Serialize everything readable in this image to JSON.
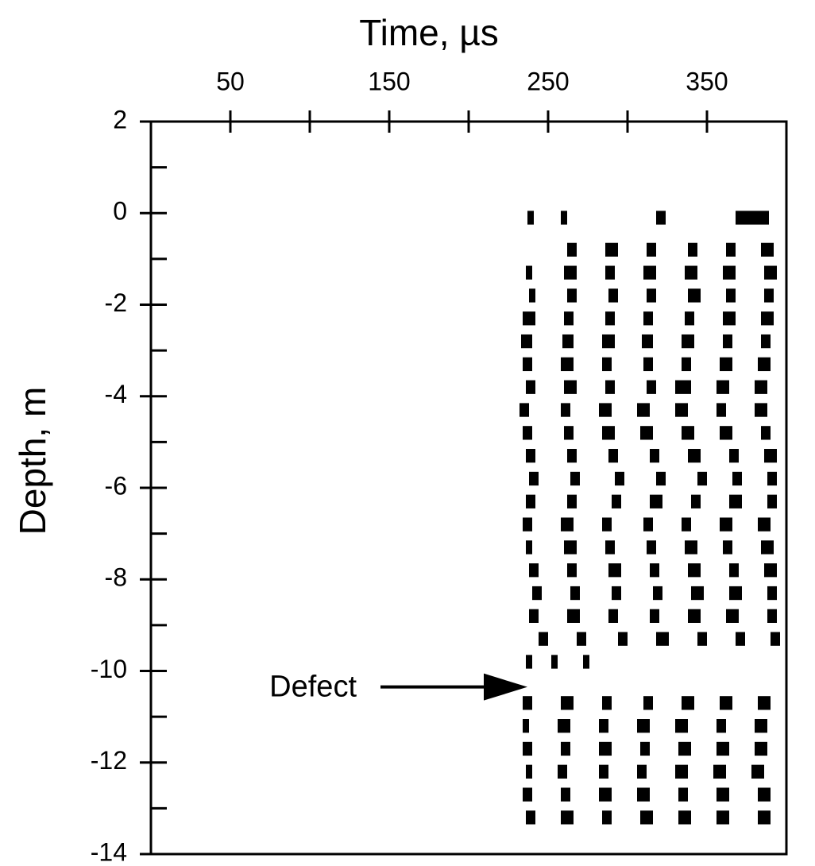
{
  "chart_data": {
    "type": "trace_bands",
    "xlabel": "Time, µs",
    "ylabel": "Depth, m",
    "xlim": [
      0,
      400
    ],
    "xticks": [
      50,
      150,
      250,
      350
    ],
    "x_minor_ticks": [
      100,
      200,
      300
    ],
    "ylim": [
      -14,
      2
    ],
    "yticks": [
      2,
      0,
      -2,
      -4,
      -6,
      -8,
      -10,
      -12,
      -14
    ],
    "y_minor_ticks": [
      1,
      -1,
      -3,
      -5,
      -7,
      -9,
      -11,
      -13
    ],
    "color": "#000000",
    "annotation": {
      "text": "Defect",
      "x": 237,
      "y": -10.35
    },
    "traces": [
      {
        "depth": -0.1,
        "bands": [
          [
            237,
            241
          ],
          [
            258,
            262
          ],
          [
            318,
            324
          ],
          [
            368,
            389
          ]
        ]
      },
      {
        "depth": -0.8,
        "bands": [
          [
            262,
            268
          ],
          [
            286,
            294
          ],
          [
            312,
            318
          ],
          [
            338,
            344
          ],
          [
            362,
            368
          ],
          [
            384,
            392
          ]
        ]
      },
      {
        "depth": -1.3,
        "bands": [
          [
            236,
            240
          ],
          [
            260,
            268
          ],
          [
            286,
            292
          ],
          [
            310,
            318
          ],
          [
            336,
            344
          ],
          [
            360,
            368
          ],
          [
            386,
            394
          ]
        ]
      },
      {
        "depth": -1.8,
        "bands": [
          [
            238,
            242
          ],
          [
            262,
            268
          ],
          [
            288,
            294
          ],
          [
            312,
            318
          ],
          [
            338,
            346
          ],
          [
            362,
            368
          ],
          [
            386,
            392
          ]
        ]
      },
      {
        "depth": -2.3,
        "bands": [
          [
            234,
            242
          ],
          [
            260,
            266
          ],
          [
            286,
            292
          ],
          [
            310,
            316
          ],
          [
            336,
            342
          ],
          [
            360,
            368
          ],
          [
            384,
            392
          ]
        ]
      },
      {
        "depth": -2.8,
        "bands": [
          [
            233,
            240
          ],
          [
            259,
            266
          ],
          [
            284,
            292
          ],
          [
            309,
            316
          ],
          [
            334,
            342
          ],
          [
            360,
            366
          ],
          [
            384,
            390
          ]
        ]
      },
      {
        "depth": -3.3,
        "bands": [
          [
            234,
            240
          ],
          [
            258,
            266
          ],
          [
            284,
            290
          ],
          [
            310,
            316
          ],
          [
            334,
            340
          ],
          [
            358,
            366
          ],
          [
            382,
            390
          ]
        ]
      },
      {
        "depth": -3.8,
        "bands": [
          [
            236,
            242
          ],
          [
            260,
            268
          ],
          [
            286,
            292
          ],
          [
            312,
            318
          ],
          [
            330,
            340
          ],
          [
            356,
            364
          ],
          [
            380,
            388
          ]
        ]
      },
      {
        "depth": -4.3,
        "bands": [
          [
            232,
            238
          ],
          [
            258,
            264
          ],
          [
            282,
            290
          ],
          [
            306,
            314
          ],
          [
            330,
            338
          ],
          [
            356,
            362
          ],
          [
            380,
            388
          ]
        ]
      },
      {
        "depth": -4.8,
        "bands": [
          [
            234,
            240
          ],
          [
            260,
            266
          ],
          [
            284,
            292
          ],
          [
            308,
            316
          ],
          [
            334,
            342
          ],
          [
            358,
            366
          ],
          [
            384,
            390
          ]
        ]
      },
      {
        "depth": -5.3,
        "bands": [
          [
            236,
            242
          ],
          [
            262,
            268
          ],
          [
            288,
            294
          ],
          [
            314,
            320
          ],
          [
            338,
            346
          ],
          [
            364,
            370
          ],
          [
            386,
            394
          ]
        ]
      },
      {
        "depth": -5.8,
        "bands": [
          [
            238,
            244
          ],
          [
            264,
            270
          ],
          [
            292,
            298
          ],
          [
            318,
            324
          ],
          [
            344,
            350
          ],
          [
            366,
            372
          ],
          [
            388,
            394
          ]
        ]
      },
      {
        "depth": -6.3,
        "bands": [
          [
            236,
            242
          ],
          [
            262,
            268
          ],
          [
            290,
            296
          ],
          [
            314,
            322
          ],
          [
            340,
            346
          ],
          [
            364,
            372
          ],
          [
            388,
            394
          ]
        ]
      },
      {
        "depth": -6.8,
        "bands": [
          [
            234,
            240
          ],
          [
            258,
            266
          ],
          [
            284,
            290
          ],
          [
            310,
            316
          ],
          [
            334,
            340
          ],
          [
            358,
            366
          ],
          [
            382,
            390
          ]
        ]
      },
      {
        "depth": -7.3,
        "bands": [
          [
            236,
            240
          ],
          [
            260,
            268
          ],
          [
            286,
            292
          ],
          [
            312,
            318
          ],
          [
            336,
            344
          ],
          [
            360,
            366
          ],
          [
            384,
            392
          ]
        ]
      },
      {
        "depth": -7.8,
        "bands": [
          [
            238,
            244
          ],
          [
            262,
            268
          ],
          [
            288,
            296
          ],
          [
            314,
            320
          ],
          [
            338,
            346
          ],
          [
            364,
            370
          ],
          [
            386,
            394
          ]
        ]
      },
      {
        "depth": -8.3,
        "bands": [
          [
            240,
            246
          ],
          [
            264,
            270
          ],
          [
            290,
            296
          ],
          [
            316,
            322
          ],
          [
            340,
            348
          ],
          [
            364,
            372
          ],
          [
            388,
            394
          ]
        ]
      },
      {
        "depth": -8.8,
        "bands": [
          [
            238,
            244
          ],
          [
            262,
            270
          ],
          [
            288,
            294
          ],
          [
            314,
            320
          ],
          [
            338,
            346
          ],
          [
            362,
            370
          ],
          [
            388,
            394
          ]
        ]
      },
      {
        "depth": -9.3,
        "bands": [
          [
            244,
            250
          ],
          [
            268,
            274
          ],
          [
            294,
            300
          ],
          [
            318,
            326
          ],
          [
            344,
            350
          ],
          [
            368,
            374
          ],
          [
            390,
            396
          ]
        ]
      },
      {
        "depth": -9.8,
        "bands": [
          [
            236,
            240
          ],
          [
            252,
            256
          ],
          [
            272,
            276
          ]
        ]
      },
      {
        "depth": -10.7,
        "bands": [
          [
            234,
            240
          ],
          [
            258,
            266
          ],
          [
            284,
            290
          ],
          [
            310,
            316
          ],
          [
            334,
            342
          ],
          [
            358,
            366
          ],
          [
            382,
            390
          ]
        ]
      },
      {
        "depth": -11.2,
        "bands": [
          [
            234,
            238
          ],
          [
            256,
            264
          ],
          [
            282,
            288
          ],
          [
            306,
            314
          ],
          [
            330,
            338
          ],
          [
            356,
            362
          ],
          [
            380,
            388
          ]
        ]
      },
      {
        "depth": -11.7,
        "bands": [
          [
            234,
            240
          ],
          [
            258,
            264
          ],
          [
            282,
            290
          ],
          [
            308,
            314
          ],
          [
            332,
            340
          ],
          [
            356,
            364
          ],
          [
            380,
            388
          ]
        ]
      },
      {
        "depth": -12.2,
        "bands": [
          [
            236,
            240
          ],
          [
            256,
            262
          ],
          [
            282,
            288
          ],
          [
            306,
            312
          ],
          [
            330,
            338
          ],
          [
            354,
            362
          ],
          [
            378,
            386
          ]
        ]
      },
      {
        "depth": -12.7,
        "bands": [
          [
            234,
            240
          ],
          [
            258,
            264
          ],
          [
            282,
            290
          ],
          [
            306,
            314
          ],
          [
            332,
            338
          ],
          [
            356,
            364
          ],
          [
            382,
            390
          ]
        ]
      },
      {
        "depth": -13.2,
        "bands": [
          [
            236,
            242
          ],
          [
            258,
            266
          ],
          [
            284,
            290
          ],
          [
            308,
            316
          ],
          [
            332,
            340
          ],
          [
            356,
            364
          ],
          [
            382,
            390
          ]
        ]
      }
    ]
  }
}
